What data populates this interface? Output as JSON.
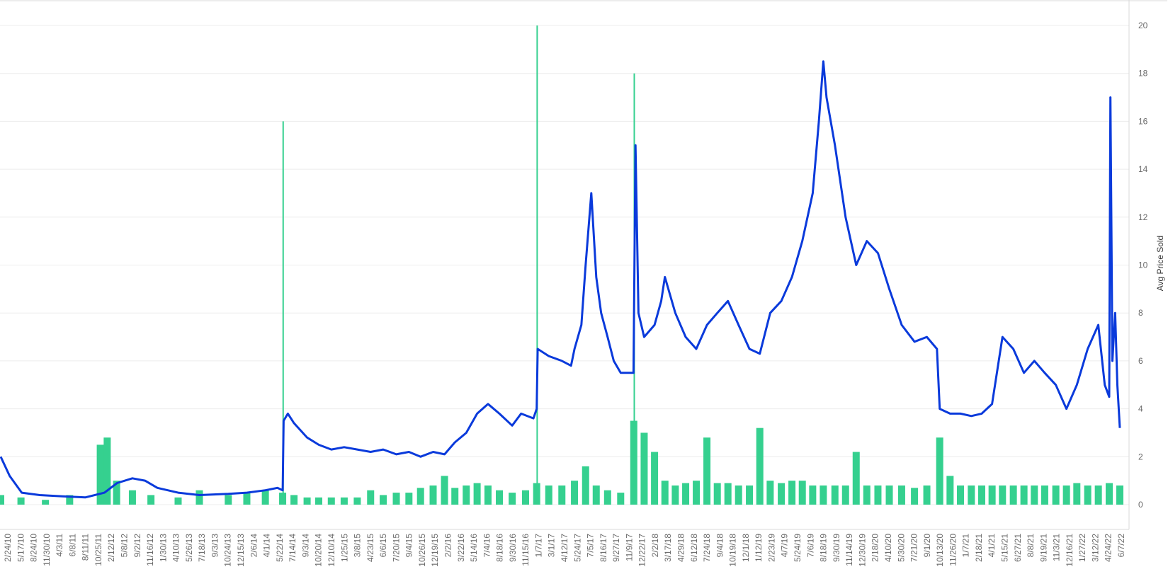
{
  "chart_data": {
    "type": "line",
    "title": "",
    "xlabel": "",
    "ylabel": "Avg Price Sold",
    "ylim": [
      0,
      20
    ],
    "y_ticks": [
      0,
      2,
      4,
      6,
      8,
      10,
      12,
      14,
      16,
      18,
      20
    ],
    "x_range": [
      "2/24/10",
      "7/20/22"
    ],
    "x_tick_labels": [
      "2/24/10",
      "5/17/10",
      "8/24/10",
      "11/30/10",
      "4/3/11",
      "6/8/11",
      "8/11/11",
      "10/25/11",
      "2/12/12",
      "5/8/12",
      "9/2/12",
      "11/16/12",
      "1/30/13",
      "4/10/13",
      "5/26/13",
      "7/18/13",
      "9/3/13",
      "10/24/13",
      "12/15/13",
      "2/6/14",
      "4/1/14",
      "5/22/14",
      "7/14/14",
      "9/3/14",
      "10/20/14",
      "12/10/14",
      "1/25/15",
      "3/8/15",
      "4/23/15",
      "6/6/15",
      "7/20/15",
      "9/4/15",
      "10/26/15",
      "12/19/15",
      "2/2/16",
      "3/22/16",
      "5/14/16",
      "7/4/16",
      "8/18/16",
      "9/30/16",
      "11/15/16",
      "1/7/17",
      "3/1/17",
      "4/12/17",
      "5/24/17",
      "7/5/17",
      "8/16/17",
      "9/27/17",
      "11/9/17",
      "12/22/17",
      "2/2/18",
      "3/17/18",
      "4/29/18",
      "6/12/18",
      "7/24/18",
      "9/4/18",
      "10/19/18",
      "12/1/18",
      "1/12/19",
      "2/23/19",
      "4/7/19",
      "5/24/19",
      "7/6/19",
      "8/18/19",
      "9/30/19",
      "11/14/19",
      "12/30/19",
      "2/18/20",
      "4/10/20",
      "5/30/20",
      "7/21/20",
      "9/1/20",
      "10/13/20",
      "11/26/20",
      "1/7/21",
      "2/18/21",
      "4/1/21",
      "5/15/21",
      "6/27/21",
      "8/8/21",
      "9/19/21",
      "11/3/21",
      "12/16/21",
      "1/27/22",
      "3/12/22",
      "4/24/22",
      "6/7/22"
    ],
    "grid": "horizontal",
    "legend": "none",
    "series": [
      {
        "mark": "line",
        "color": "#0a3adb",
        "x": [
          "2/24/10",
          "4/1/10",
          "5/20/10",
          "8/1/10",
          "11/1/10",
          "2/1/11",
          "4/20/11",
          "6/10/11",
          "8/11/11",
          "10/1/11",
          "11/20/11",
          "2/12/12",
          "5/8/12",
          "9/2/12",
          "11/16/12",
          "1/30/13",
          "3/20/13",
          "4/10/13",
          "4/14/13",
          "5/1/13",
          "5/26/13",
          "7/18/13",
          "9/3/13",
          "10/24/13",
          "12/15/13",
          "2/6/14",
          "4/1/14",
          "5/22/14",
          "7/14/14",
          "9/3/14",
          "10/20/14",
          "12/10/14",
          "1/25/15",
          "3/8/15",
          "4/23/15",
          "6/6/15",
          "7/20/15",
          "9/4/15",
          "10/26/15",
          "12/1/15",
          "1/20/16",
          "2/2/16",
          "2/6/16",
          "3/22/16",
          "5/14/16",
          "6/20/16",
          "7/4/16",
          "8/1/16",
          "8/18/16",
          "9/10/16",
          "9/30/16",
          "10/20/16",
          "11/15/16",
          "12/10/16",
          "1/7/17",
          "2/10/17",
          "2/28/17",
          "3/8/17",
          "3/20/17",
          "4/12/17",
          "5/24/17",
          "6/20/17",
          "7/5/17",
          "8/16/17",
          "9/27/17",
          "11/9/17",
          "12/22/17",
          "2/2/18",
          "3/17/18",
          "4/29/18",
          "6/12/18",
          "7/24/18",
          "9/4/18",
          "10/19/18",
          "12/1/18",
          "1/12/19",
          "2/23/19",
          "3/20/19",
          "4/7/19",
          "4/20/19",
          "5/24/19",
          "7/6/19",
          "8/18/19",
          "9/30/19",
          "11/14/19",
          "12/30/19",
          "2/18/20",
          "4/10/20",
          "5/30/20",
          "7/10/20",
          "7/21/20",
          "9/1/20",
          "10/13/20",
          "11/26/20",
          "1/7/21",
          "2/18/21",
          "4/1/21",
          "5/15/21",
          "6/27/21",
          "8/8/21",
          "9/19/21",
          "11/3/21",
          "12/16/21",
          "1/27/22",
          "3/12/22",
          "4/24/22",
          "5/20/22",
          "6/7/22",
          "6/12/22",
          "6/20/22",
          "7/1/22",
          "7/10/22",
          "7/20/22"
        ],
        "values": [
          2.0,
          1.2,
          0.5,
          0.4,
          0.35,
          0.3,
          0.5,
          0.9,
          1.1,
          1.0,
          0.7,
          0.5,
          0.4,
          0.45,
          0.5,
          0.6,
          0.7,
          0.6,
          3.5,
          3.8,
          3.4,
          2.8,
          2.5,
          2.3,
          2.4,
          2.3,
          2.2,
          2.3,
          2.1,
          2.2,
          2.0,
          2.2,
          2.1,
          2.6,
          3.0,
          3.8,
          4.2,
          3.8,
          3.3,
          3.8,
          3.6,
          4.0,
          6.5,
          6.2,
          6.0,
          5.8,
          6.5,
          7.5,
          10.0,
          13.0,
          9.5,
          8.0,
          7.0,
          6.0,
          5.5,
          5.5,
          5.5,
          15.0,
          8.0,
          7.0,
          7.5,
          8.5,
          9.5,
          8.0,
          7.0,
          6.5,
          7.5,
          8.0,
          8.5,
          7.5,
          6.5,
          6.3,
          8.0,
          8.5,
          9.5,
          11.0,
          13.0,
          16.0,
          18.5,
          17.0,
          15.0,
          12.0,
          10.0,
          11.0,
          10.5,
          9.0,
          7.5,
          6.8,
          7.0,
          6.5,
          4.0,
          3.8,
          3.8,
          3.7,
          3.8,
          4.2,
          7.0,
          6.5,
          5.5,
          6.0,
          5.5,
          5.0,
          4.0,
          5.0,
          6.5,
          7.5,
          5.0,
          4.5,
          17.0,
          6.0,
          8.0,
          5.0,
          3.2
        ]
      },
      {
        "mark": "bar",
        "color": "#35d08f",
        "x": [
          "2/24/10",
          "5/17/10",
          "8/24/10",
          "11/30/10",
          "4/3/11",
          "5/1/11",
          "6/8/11",
          "8/11/11",
          "10/25/11",
          "2/12/12",
          "5/8/12",
          "9/2/12",
          "11/16/12",
          "1/30/13",
          "4/10/13",
          "4/12/13",
          "5/26/13",
          "7/18/13",
          "9/3/13",
          "10/24/13",
          "12/15/13",
          "2/6/14",
          "4/1/14",
          "5/22/14",
          "7/14/14",
          "9/3/14",
          "10/20/14",
          "12/10/14",
          "1/25/15",
          "3/8/15",
          "4/23/15",
          "6/6/15",
          "7/20/15",
          "9/4/15",
          "10/26/15",
          "12/19/15",
          "2/2/16",
          "2/4/16",
          "3/22/16",
          "5/14/16",
          "7/4/16",
          "8/18/16",
          "9/30/16",
          "11/15/16",
          "1/7/17",
          "3/1/17",
          "3/3/17",
          "4/12/17",
          "5/24/17",
          "7/5/17",
          "8/16/17",
          "9/27/17",
          "11/9/17",
          "12/22/17",
          "2/2/18",
          "3/17/18",
          "4/29/18",
          "6/12/18",
          "7/24/18",
          "9/4/18",
          "10/19/18",
          "12/1/18",
          "1/12/19",
          "2/23/19",
          "4/7/19",
          "5/24/19",
          "7/6/19",
          "8/18/19",
          "9/30/19",
          "11/14/19",
          "12/30/19",
          "2/18/20",
          "4/10/20",
          "5/30/20",
          "7/21/20",
          "9/1/20",
          "10/13/20",
          "11/26/20",
          "1/7/21",
          "2/18/21",
          "4/1/21",
          "5/15/21",
          "6/27/21",
          "8/8/21",
          "9/19/21",
          "11/3/21",
          "12/16/21",
          "1/27/22",
          "3/12/22",
          "4/24/22",
          "6/7/22",
          "7/20/22"
        ],
        "values": [
          0.4,
          0.3,
          0.2,
          0.4,
          2.5,
          2.8,
          1.0,
          0.6,
          0.4,
          0.3,
          0.6,
          0.4,
          0.5,
          0.6,
          0.5,
          16.0,
          0.4,
          0.3,
          0.3,
          0.3,
          0.3,
          0.3,
          0.6,
          0.4,
          0.5,
          0.5,
          0.7,
          0.8,
          1.2,
          0.7,
          0.8,
          0.9,
          0.8,
          0.6,
          0.5,
          0.6,
          0.9,
          20.0,
          0.8,
          0.8,
          1.0,
          1.6,
          0.8,
          0.6,
          0.5,
          3.5,
          18.0,
          3.0,
          2.2,
          1.0,
          0.8,
          0.9,
          1.0,
          2.8,
          0.9,
          0.9,
          0.8,
          0.8,
          3.2,
          1.0,
          0.9,
          1.0,
          1.0,
          0.8,
          0.8,
          0.8,
          0.8,
          2.2,
          0.8,
          0.8,
          0.8,
          0.8,
          0.7,
          0.8,
          2.8,
          1.2,
          0.8,
          0.8,
          0.8,
          0.8,
          0.8,
          0.8,
          0.8,
          0.8,
          0.8,
          0.8,
          0.8,
          0.9,
          0.8,
          0.8,
          0.9,
          0.8
        ]
      }
    ]
  }
}
